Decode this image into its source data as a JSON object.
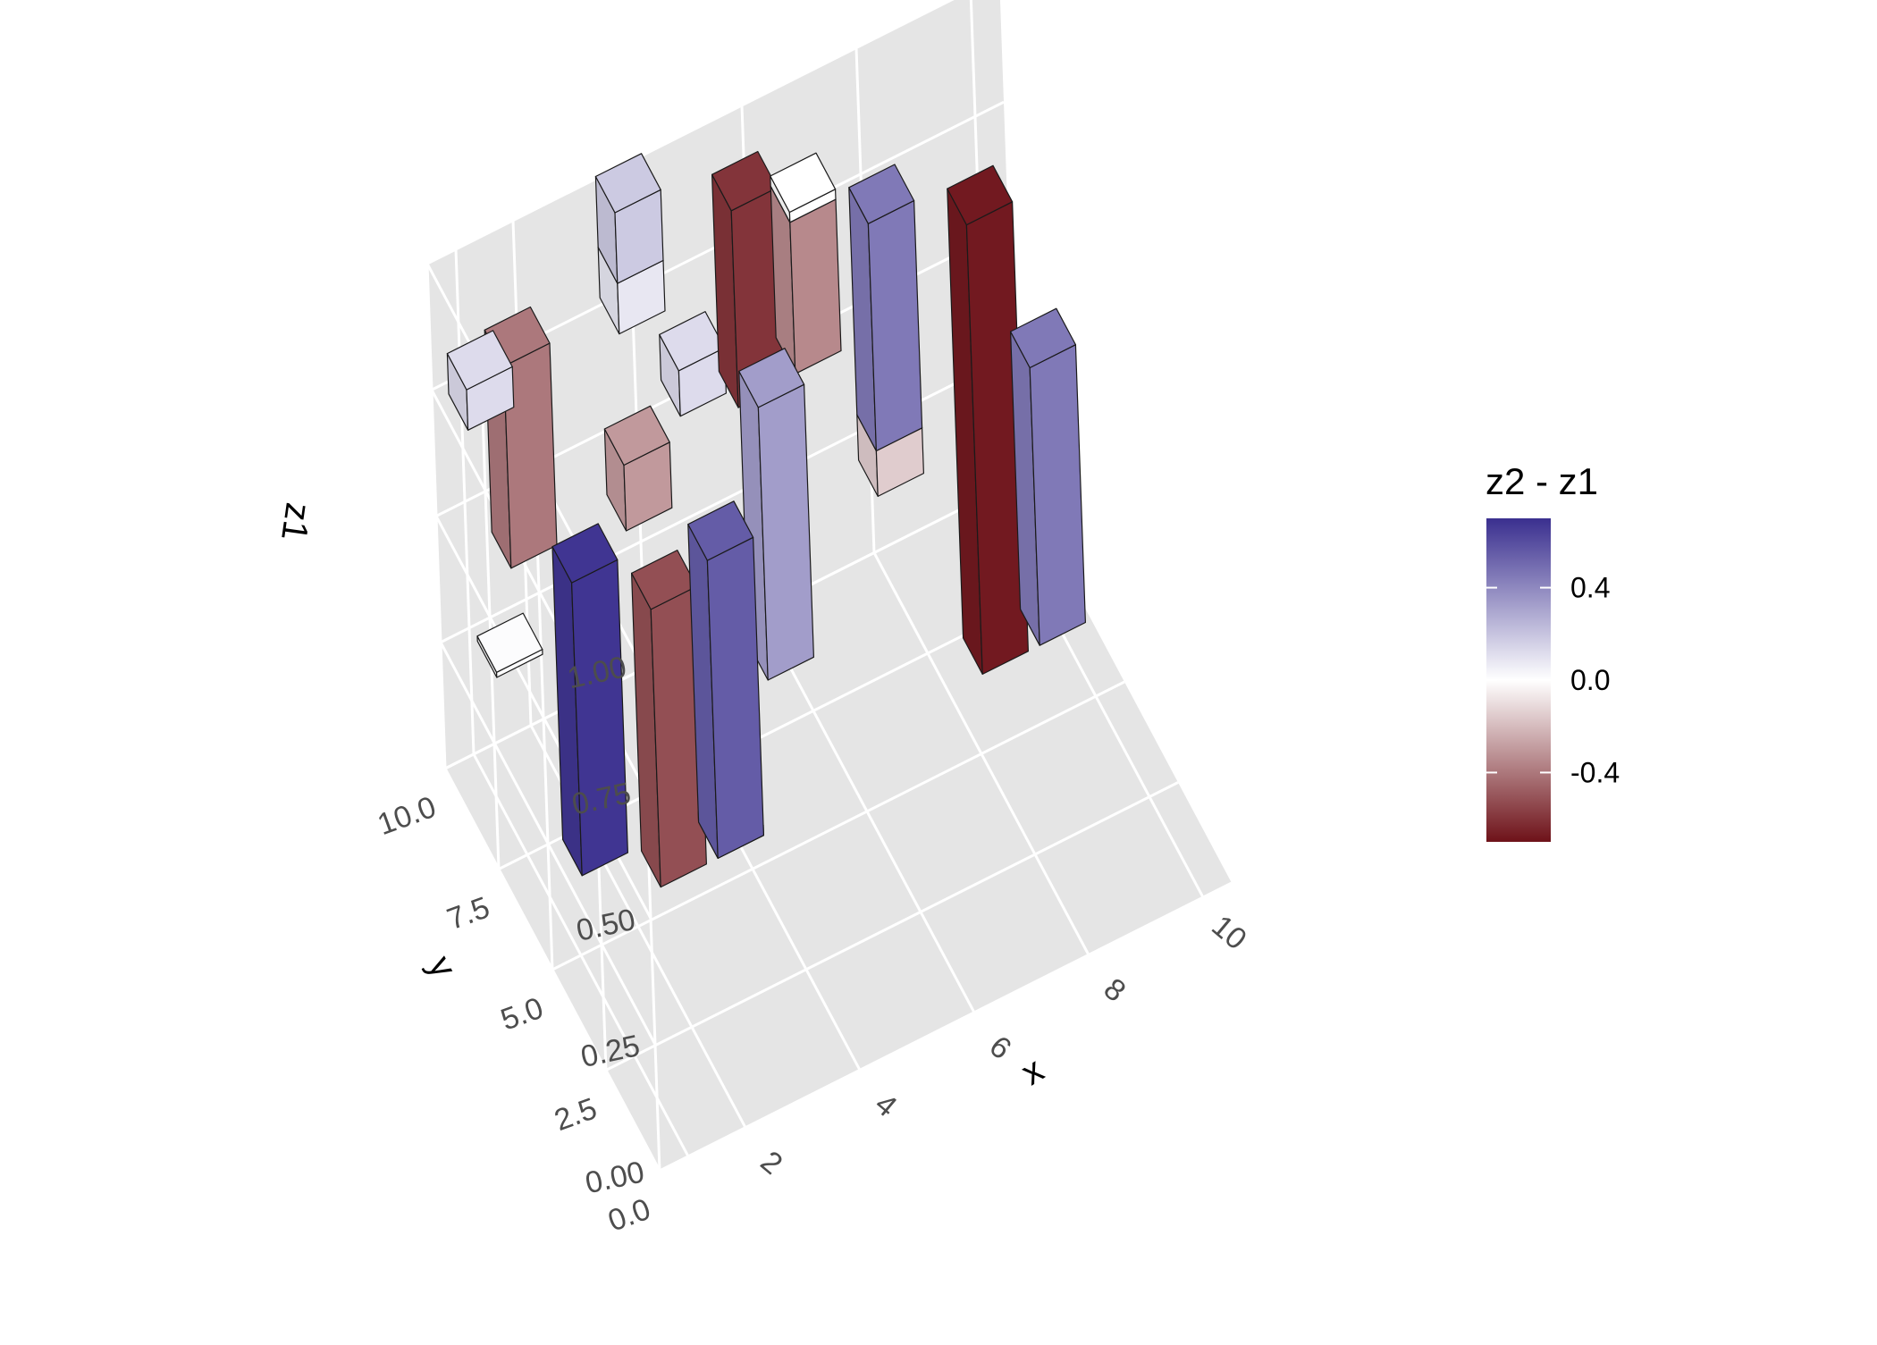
{
  "chart_data": {
    "type": "bar3d",
    "x_label": "x",
    "y_label": "y",
    "z_label": "z1",
    "x_ticks": [
      2,
      4,
      6,
      8,
      10
    ],
    "y_ticks": [
      "0.0",
      "2.5",
      "5.0",
      "7.5",
      "10.0"
    ],
    "z_ticks": [
      "0.00",
      "0.25",
      "0.50",
      "0.75",
      "1.00"
    ],
    "xlim": [
      0.5,
      10.5
    ],
    "ylim": [
      0,
      10
    ],
    "zlim": [
      0,
      1
    ],
    "grid": true,
    "legend": {
      "title": "z2 - z1",
      "ticks": [
        "0.4",
        "0.0",
        "-0.4"
      ],
      "tick_values": [
        0.4,
        0.0,
        -0.4
      ],
      "range": [
        -0.7,
        0.7
      ],
      "colors": {
        "low": "#6e1219",
        "mid": "#ffffff",
        "high": "#3a2f8f"
      },
      "position": "right"
    },
    "bars": [
      {
        "x": 1,
        "y": 8,
        "z_base": 0.37,
        "z_top": 0.38,
        "diff": 0.01
      },
      {
        "x": 1,
        "y": 9,
        "z_base": 0.78,
        "z_top": 0.86,
        "diff": 0.12
      },
      {
        "x": 2,
        "y": 7,
        "z_base": 0.0,
        "z_top": 0.58,
        "diff": 0.68
      },
      {
        "x": 2,
        "y": 10,
        "z_base": 0.37,
        "z_top": 0.77,
        "diff": -0.4
      },
      {
        "x": 3,
        "y": 6,
        "z_base": 0.0,
        "z_top": 0.55,
        "diff": -0.52
      },
      {
        "x": 4,
        "y": 6,
        "z_base": 0.0,
        "z_top": 0.02,
        "diff": 0.0
      },
      {
        "x": 4,
        "y": 6,
        "z_base": 0.0,
        "z_top": 0.59,
        "diff": 0.55
      },
      {
        "x": 4,
        "y": 10,
        "z_base": 0.33,
        "z_top": 0.46,
        "diff": -0.3
      },
      {
        "x": 4,
        "y": 10,
        "z_base": 0.82,
        "z_top": 0.96,
        "diff": 0.18
      },
      {
        "x": 4,
        "y": 10,
        "z_base": 0.72,
        "z_top": 0.82,
        "diff": 0.08
      },
      {
        "x": 5,
        "y": 10,
        "z_base": 0.5,
        "z_top": 0.59,
        "diff": 0.12
      },
      {
        "x": 6,
        "y": 9,
        "z_base": 0.0,
        "z_top": 0.54,
        "diff": 0.33
      },
      {
        "x": 6,
        "y": 10,
        "z_base": 0.46,
        "z_top": 0.85,
        "diff": -0.6
      },
      {
        "x": 7,
        "y": 10,
        "z_base": 0.47,
        "z_top": 0.77,
        "diff": -0.35
      },
      {
        "x": 7,
        "y": 10,
        "z_base": 0.77,
        "z_top": 0.79,
        "diff": 0.0
      },
      {
        "x": 8,
        "y": 9,
        "z_base": 0.25,
        "z_top": 0.34,
        "diff": -0.15
      },
      {
        "x": 8,
        "y": 9,
        "z_base": 0.34,
        "z_top": 0.79,
        "diff": 0.45
      },
      {
        "x": 9,
        "y": 7,
        "z_base": 0.0,
        "z_top": 0.89,
        "diff": -0.68
      },
      {
        "x": 10,
        "y": 7,
        "z_base": 0.0,
        "z_top": 0.55,
        "diff": 0.45
      }
    ]
  }
}
